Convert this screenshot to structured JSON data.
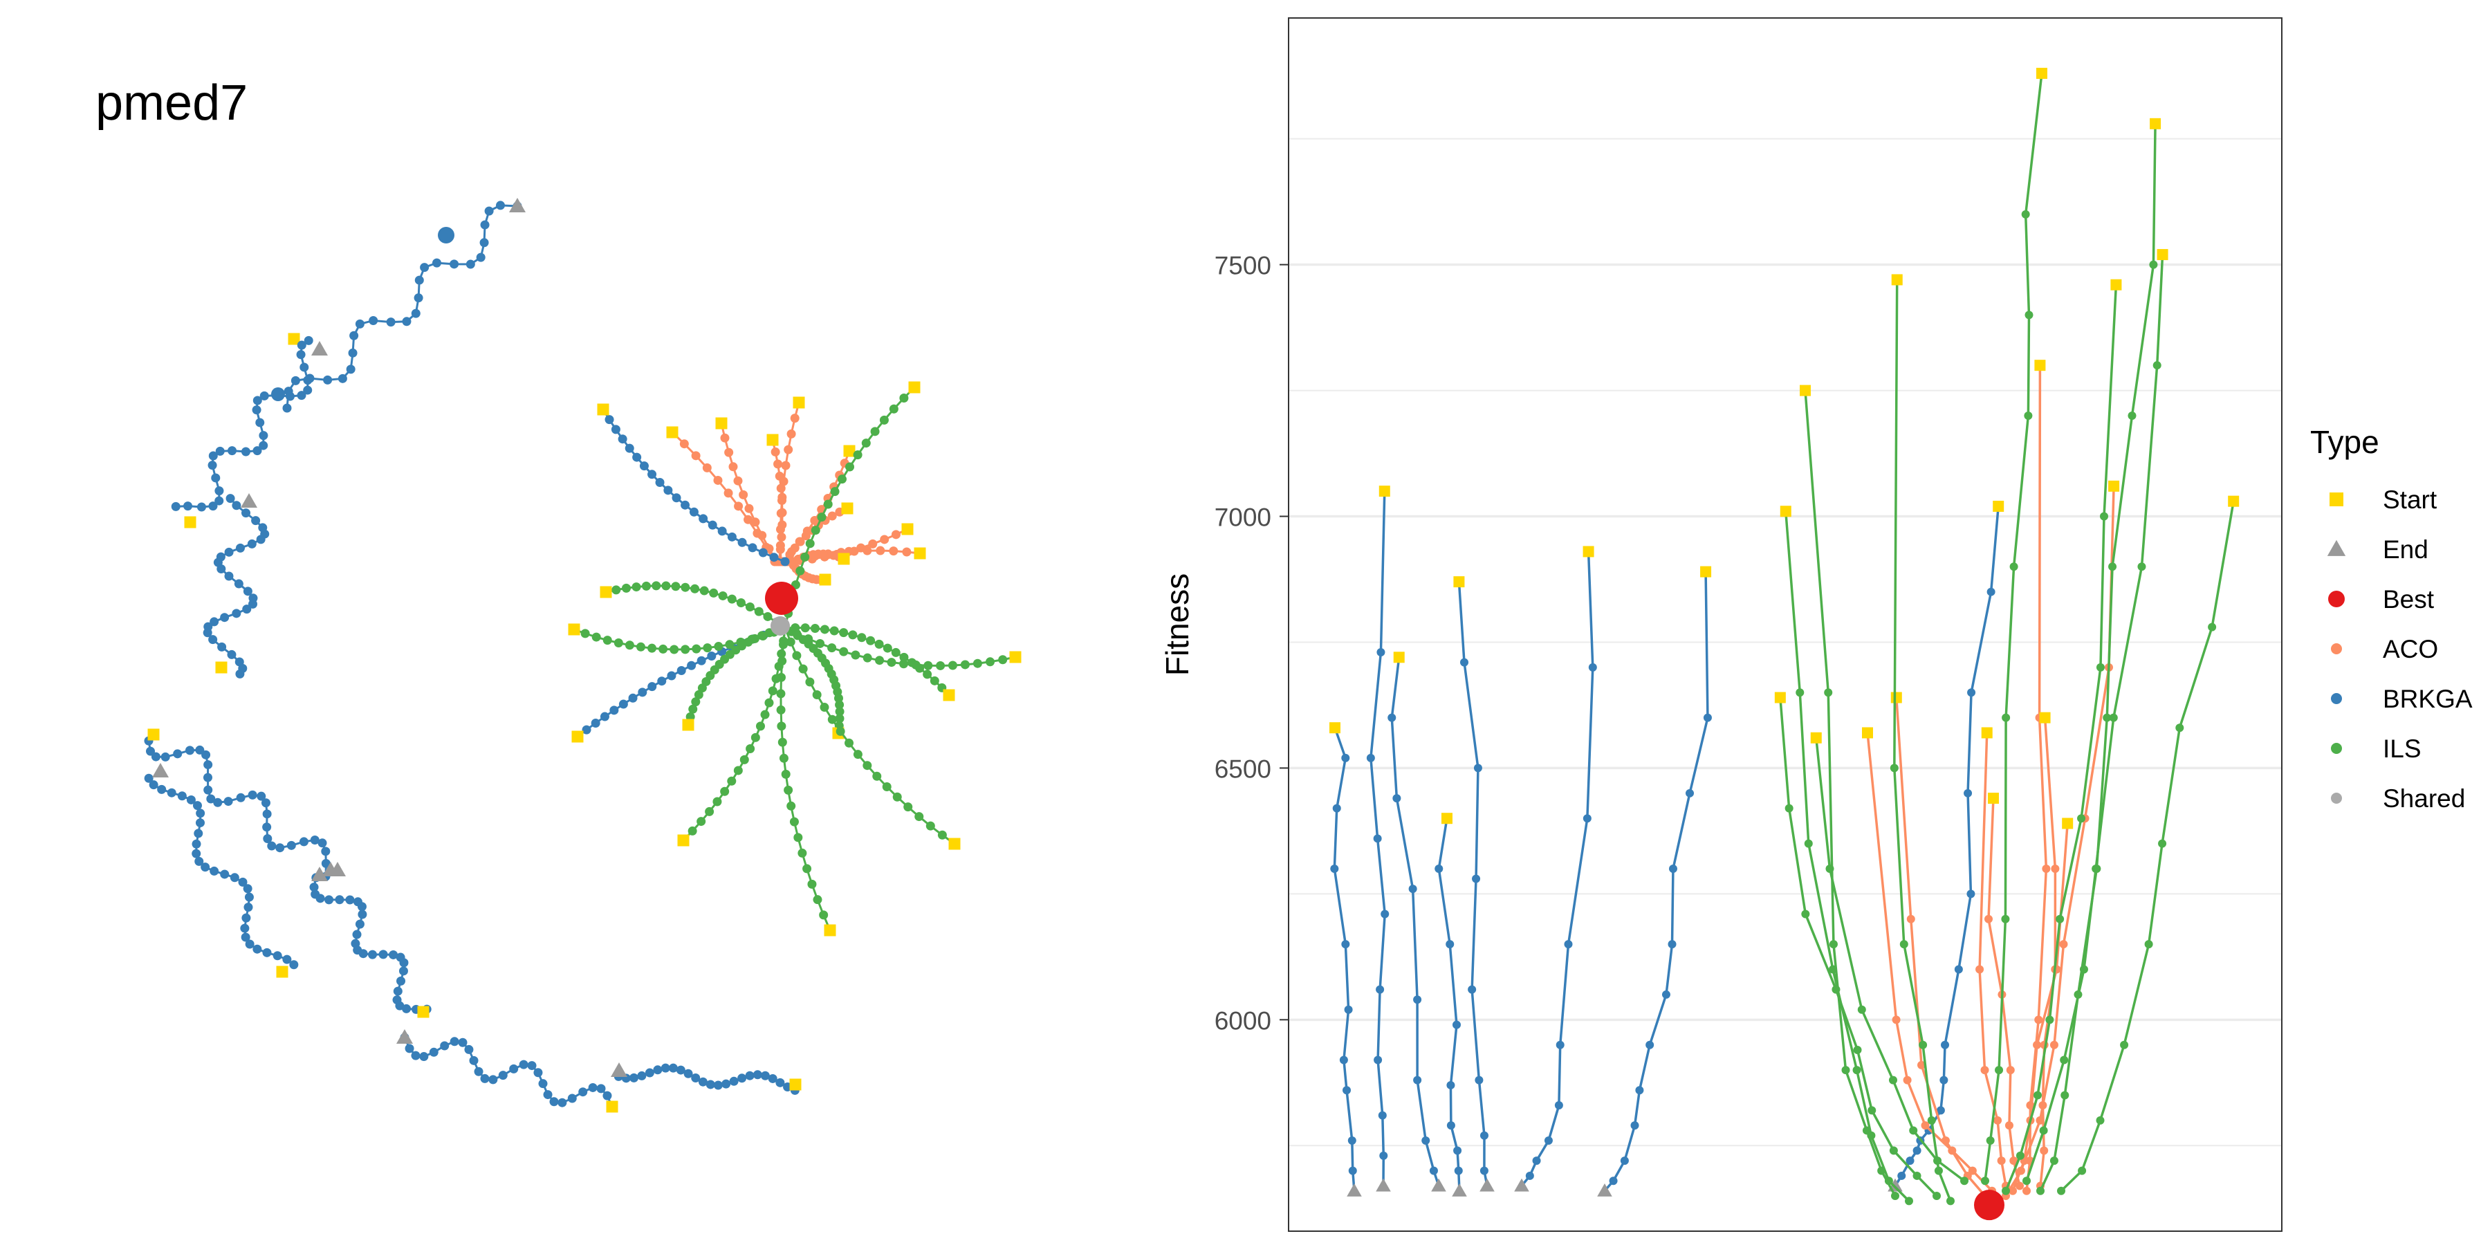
{
  "title": "pmed7",
  "colors": {
    "start": "#FFD700",
    "end": "#999999",
    "best": "#E41A1C",
    "aco": "#FC8D62",
    "brkga": "#377EB8",
    "ils": "#4DAF4A",
    "shared": "#AAAAAA",
    "grid": "#EBEBEB",
    "axis_text": "#4D4D4D"
  },
  "legend": {
    "title": "Type",
    "placement": "right",
    "items": [
      {
        "label": "Start",
        "shape": "square",
        "color": "#FFD700"
      },
      {
        "label": "End",
        "shape": "triangle",
        "color": "#999999"
      },
      {
        "label": "Best",
        "shape": "circle",
        "color": "#E41A1C"
      },
      {
        "label": "ACO",
        "shape": "dot",
        "color": "#FC8D62"
      },
      {
        "label": "BRKGA",
        "shape": "dot",
        "color": "#377EB8"
      },
      {
        "label": "ILS",
        "shape": "dot",
        "color": "#4DAF4A"
      },
      {
        "label": "Shared",
        "shape": "dot",
        "color": "#AAAAAA"
      }
    ]
  },
  "chart_data": [
    {
      "type": "network",
      "title": "pmed7",
      "description_of_content": "search-trajectory network graph, no axes",
      "algorithms": [
        "ACO",
        "BRKGA",
        "ILS"
      ]
    },
    {
      "type": "line",
      "ylabel": "Fitness",
      "xlabel": "",
      "ylim": [
        5580,
        7990
      ],
      "yticks": [
        6000,
        6500,
        7000,
        7500
      ],
      "grid": true,
      "best_fitness": 5632,
      "series": [
        {
          "name": "BRKGA",
          "color": "#377EB8",
          "y": [
            [
              6580,
              6520,
              6420,
              6300,
              6150,
              6020,
              5920,
              5860,
              5760,
              5700,
              5660
            ],
            [
              7050,
              6730,
              6520,
              6360,
              6210,
              6060,
              5920,
              5810,
              5730,
              5670
            ],
            [
              6720,
              6600,
              6440,
              6260,
              6040,
              5880,
              5760,
              5700,
              5670
            ],
            [
              6400,
              6300,
              6150,
              5990,
              5870,
              5790,
              5740,
              5700,
              5660
            ],
            [
              6870,
              6710,
              6500,
              6280,
              6060,
              5880,
              5770,
              5700,
              5670
            ],
            [
              6930,
              6700,
              6400,
              6150,
              5950,
              5830,
              5760,
              5720,
              5690,
              5670
            ],
            [
              6890,
              6600,
              6450,
              6300,
              6150,
              6050,
              5950,
              5860,
              5790,
              5720,
              5680,
              5660
            ],
            [
              7020,
              6850,
              6650,
              6450,
              6250,
              6100,
              5950,
              5880,
              5820,
              5780,
              5760,
              5740,
              5720,
              5690,
              5670
            ]
          ]
        },
        {
          "name": "ACO",
          "color": "#FC8D62",
          "y": [
            [
              6570,
              6000,
              5880,
              5790,
              5740,
              5700,
              5660
            ],
            [
              6640,
              6200,
              5910,
              5760,
              5690,
              5650
            ],
            [
              6570,
              6100,
              5900,
              5800,
              5720,
              5670
            ],
            [
              6440,
              6200,
              6050,
              5900,
              5790,
              5720,
              5670
            ],
            [
              7300,
              6600,
              6300,
              6000,
              5830,
              5720,
              5660
            ],
            [
              6600,
              6300,
              6100,
              5950,
              5830,
              5740,
              5670
            ],
            [
              7060,
              6700,
              6400,
              6150,
              5950,
              5800,
              5700,
              5650
            ],
            [
              6390,
              6100,
              5950,
              5800,
              5720,
              5660
            ]
          ]
        },
        {
          "name": "ILS",
          "color": "#4DAF4A",
          "y": [
            [
              7250,
              6650,
              6150,
              5900,
              5780,
              5700,
              5650
            ],
            [
              7010,
              6650,
              6350,
              6100,
              5900,
              5770,
              5680,
              5640
            ],
            [
              7470,
              6500,
              6150,
              5950,
              5800,
              5700,
              5640
            ],
            [
              7880,
              7600,
              7400,
              7200,
              6900,
              6600,
              6200,
              5900,
              5760,
              5680
            ],
            [
              7460,
              7000,
              6700,
              6400,
              6200,
              6000,
              5850,
              5730,
              5660
            ],
            [
              7520,
              7300,
              6900,
              6600,
              6300,
              6100,
              5920,
              5780,
              5680
            ],
            [
              7780,
              7500,
              7200,
              6900,
              6600,
              6300,
              6050,
              5850,
              5720,
              5660
            ],
            [
              7030,
              6780,
              6580,
              6350,
              6150,
              5950,
              5800,
              5700,
              5660
            ],
            [
              6640,
              6420,
              6210,
              6060,
              5940,
              5820,
              5740,
              5690,
              5650
            ],
            [
              6560,
              6300,
              6020,
              5880,
              5780,
              5720,
              5680
            ]
          ]
        }
      ]
    }
  ]
}
